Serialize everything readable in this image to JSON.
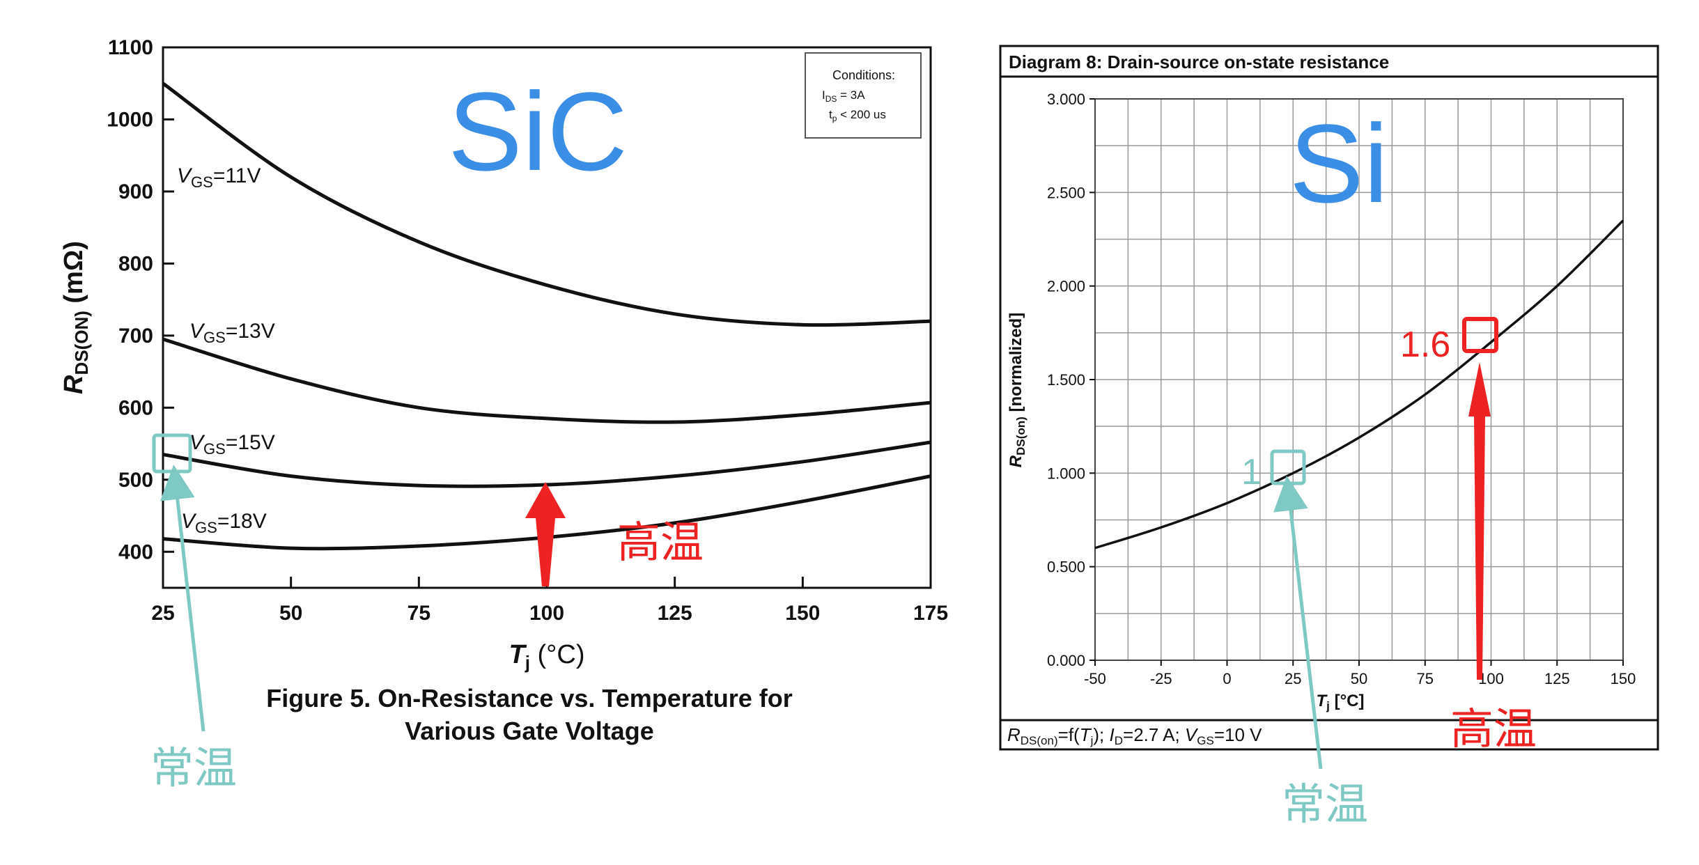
{
  "colors": {
    "accent_blue": "#3a8ee6",
    "teal": "#7fc9c4",
    "red": "#ee2222",
    "curve": "#111111",
    "grid": "#999999"
  },
  "annotations": {
    "sic": "SiC",
    "si": "Si",
    "room_temp": "常温",
    "high_temp": "高温",
    "val_one": "1",
    "val_one_six": "1.6"
  },
  "chart_data": [
    {
      "type": "line",
      "title": "Figure 5. On-Resistance vs. Temperature for",
      "title_line2": "Various Gate Voltage",
      "xlabel_main": "T",
      "xlabel_sub": "j",
      "xlabel_unit": " (°C)",
      "ylabel_main": "R",
      "ylabel_sub": "DS(ON)",
      "ylabel_unit": " (mΩ)",
      "xlim": [
        25,
        175
      ],
      "ylim": [
        350,
        1100
      ],
      "x_ticks": [
        25,
        50,
        75,
        100,
        125,
        150,
        175
      ],
      "x_tick_labels": [
        "25",
        "50",
        "75",
        "100",
        "125",
        "150",
        "175"
      ],
      "y_ticks": [
        400,
        500,
        600,
        700,
        800,
        900,
        1000,
        1100
      ],
      "y_tick_labels": [
        "400",
        "500",
        "600",
        "700",
        "800",
        "900",
        "1000",
        "1100"
      ],
      "grid": false,
      "conditions": {
        "title": "Conditions:",
        "line1_main": "I",
        "line1_sub": "DS",
        "line1_value": " = 3A",
        "line2_main": "t",
        "line2_sub": "p",
        "line2_value": " < 200 us"
      },
      "series": [
        {
          "name": "V",
          "name_sub": "GS",
          "name_value": "=11V",
          "x": [
            25,
            50,
            75,
            100,
            125,
            150,
            175
          ],
          "y": [
            1050,
            920,
            830,
            770,
            730,
            715,
            720
          ]
        },
        {
          "name": "V",
          "name_sub": "GS",
          "name_value": "=13V",
          "x": [
            25,
            50,
            75,
            100,
            125,
            150,
            175
          ],
          "y": [
            695,
            640,
            600,
            585,
            580,
            590,
            607
          ]
        },
        {
          "name": "V",
          "name_sub": "GS",
          "name_value": "=15V",
          "x": [
            25,
            50,
            75,
            100,
            125,
            150,
            175
          ],
          "y": [
            535,
            505,
            492,
            493,
            505,
            525,
            552
          ]
        },
        {
          "name": "V",
          "name_sub": "GS",
          "name_value": "=18V",
          "x": [
            25,
            50,
            75,
            100,
            125,
            150,
            175
          ],
          "y": [
            418,
            405,
            408,
            420,
            440,
            470,
            505
          ]
        }
      ]
    },
    {
      "type": "line",
      "title": "Diagram 8: Drain-source on-state resistance",
      "xlabel_main": "T",
      "xlabel_sub": "j",
      "xlabel_unit": " [°C]",
      "ylabel_main": "R",
      "ylabel_sub": "DS(on)",
      "ylabel_unit": " [normalized]",
      "xlim": [
        -50,
        150
      ],
      "ylim": [
        0,
        3
      ],
      "x_ticks": [
        -50,
        -25,
        0,
        25,
        50,
        75,
        100,
        125,
        150
      ],
      "x_tick_labels": [
        "-50",
        "-25",
        "0",
        "25",
        "50",
        "75",
        "100",
        "125",
        "150"
      ],
      "y_ticks": [
        0,
        0.5,
        1,
        1.5,
        2,
        2.5,
        3
      ],
      "y_tick_labels": [
        "0.000",
        "0.500",
        "1.000",
        "1.500",
        "2.000",
        "2.500",
        "3.000"
      ],
      "grid": true,
      "footer": {
        "r": "R",
        "r_sub": "DS(on)",
        "eq": "=f(",
        "t": "T",
        "t_sub": "j",
        "rest1": "); ",
        "i": "I",
        "i_sub": "D",
        "rest2": "=2.7 A; ",
        "v": "V",
        "v_sub": "GS",
        "rest3": "=10 V"
      },
      "series": [
        {
          "x": [
            -50,
            -25,
            0,
            25,
            50,
            75,
            100,
            125,
            150
          ],
          "y": [
            0.6,
            0.71,
            0.84,
            1.0,
            1.19,
            1.42,
            1.7,
            2.0,
            2.35
          ]
        }
      ]
    }
  ]
}
